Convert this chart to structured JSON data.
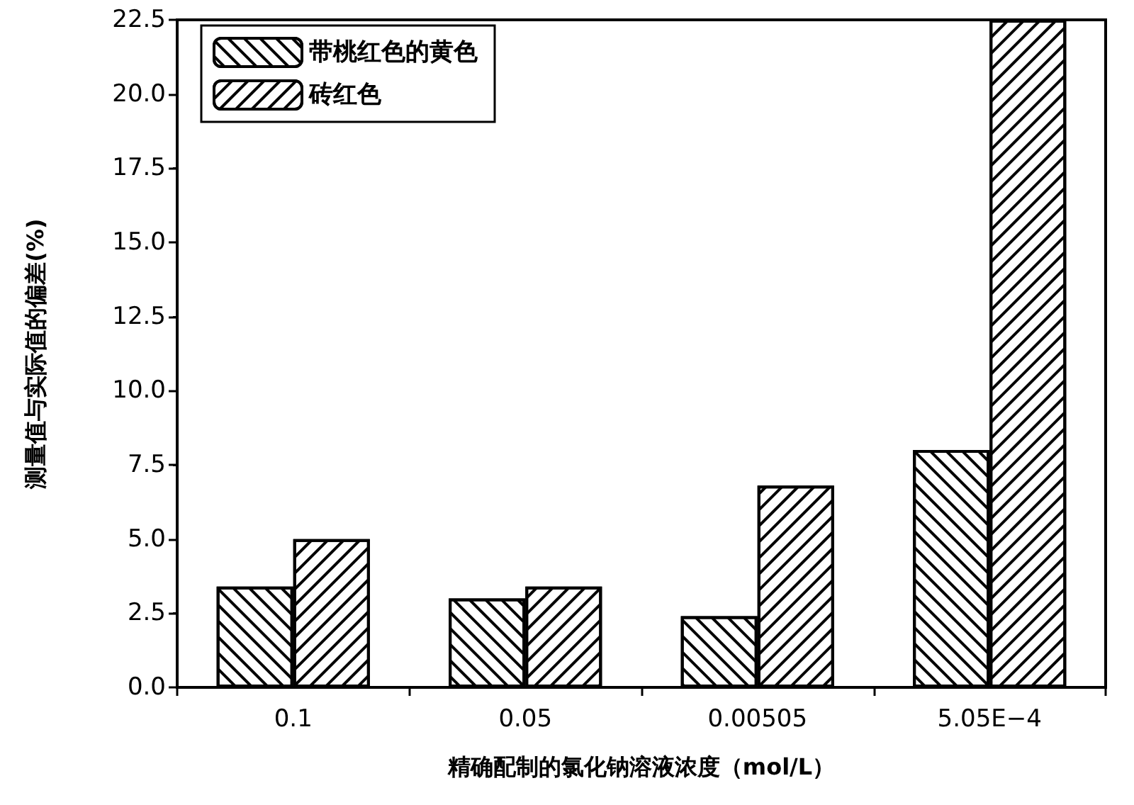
{
  "chart_data": {
    "type": "bar",
    "xlabel": "精确配制的氯化钠溶液浓度（mol/L）",
    "ylabel": "测量值与实际值的偏差(%)",
    "categories": [
      "0.1",
      "0.05",
      "0.00505",
      "5.05E−4"
    ],
    "series": [
      {
        "name": "带桃红色的黄色",
        "color": "#000000",
        "values": [
          3.4,
          3.0,
          2.4,
          8.0
        ]
      },
      {
        "name": "砖红色",
        "color": "#000000",
        "values": [
          5.0,
          3.4,
          6.8,
          22.5
        ]
      }
    ],
    "ylim": [
      0,
      22.5
    ],
    "yticks": [
      {
        "value": 0,
        "label": "0.0"
      },
      {
        "value": 2.5,
        "label": "2.5"
      },
      {
        "value": 5,
        "label": "5.0"
      },
      {
        "value": 7.5,
        "label": "7.5"
      },
      {
        "value": 10,
        "label": "10.0"
      },
      {
        "value": 12.5,
        "label": "12.5"
      },
      {
        "value": 15,
        "label": "15.0"
      },
      {
        "value": 17.5,
        "label": "17.5"
      },
      {
        "value": 20,
        "label": "20.0"
      },
      {
        "value": 22.5,
        "label": "22.5"
      }
    ],
    "grid": false,
    "legend": "top left"
  }
}
